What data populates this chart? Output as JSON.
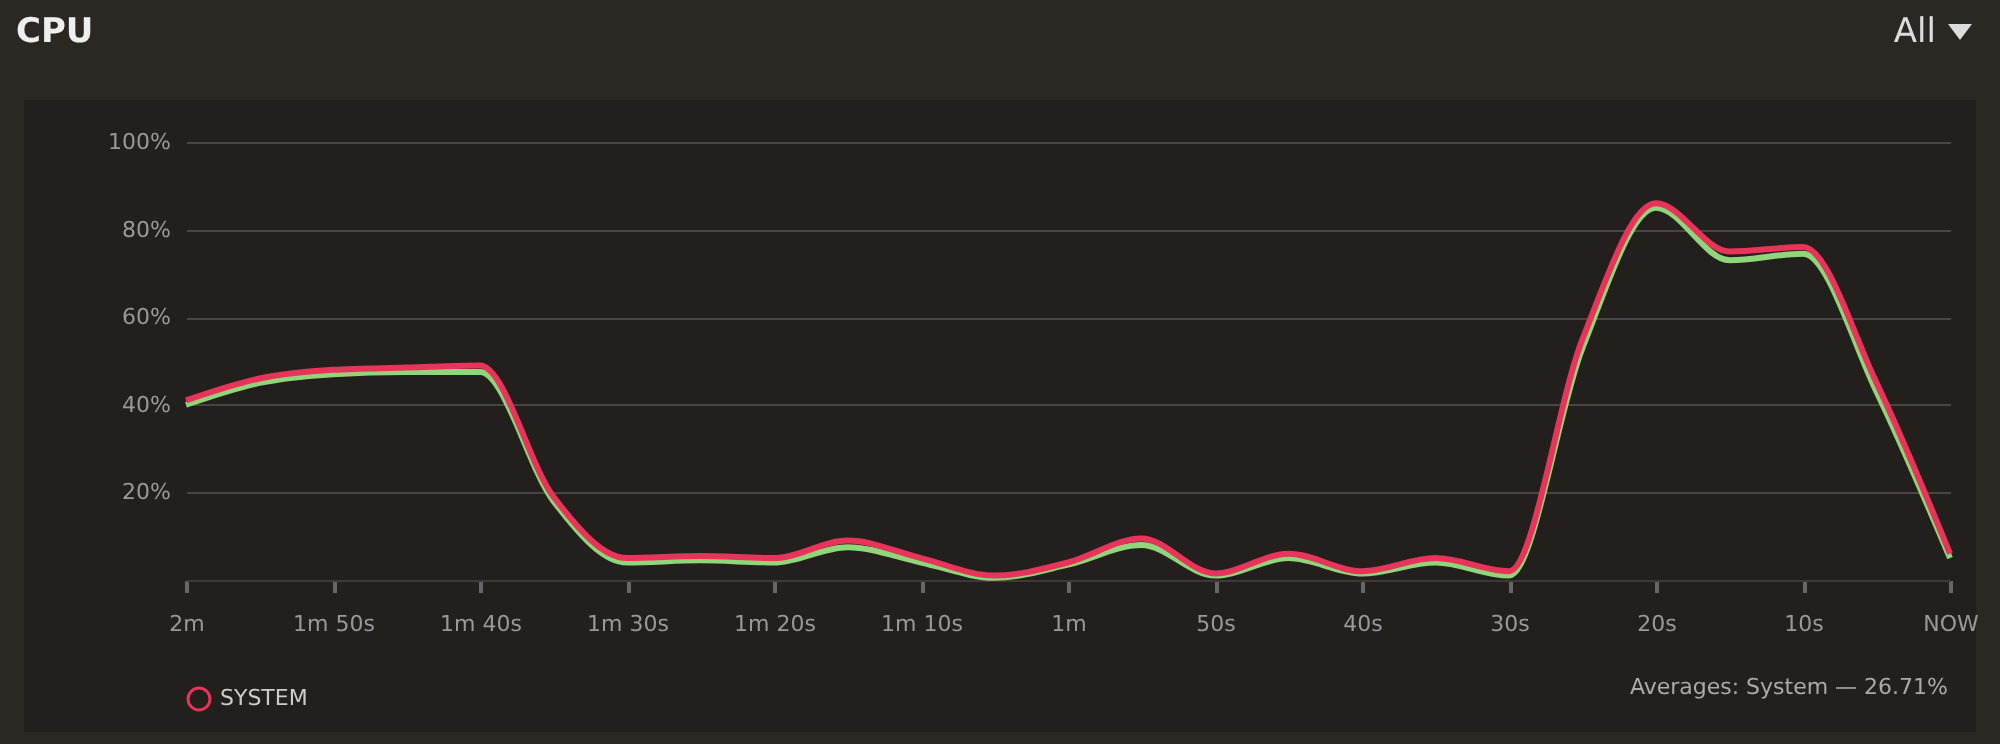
{
  "chart_data": {
    "type": "line",
    "title": "CPU",
    "categories": [
      "2m",
      null,
      "1m 50s",
      null,
      "1m 40s",
      null,
      "1m 30s",
      null,
      "1m 20s",
      null,
      "1m 10s",
      null,
      "1m",
      null,
      "50s",
      null,
      "40s",
      null,
      "30s",
      null,
      "20s",
      null,
      "10s",
      null,
      "NOW"
    ],
    "series": [
      {
        "color": "#8fd67a",
        "values": [
          40,
          45,
          47,
          47.5,
          47.5,
          18,
          4,
          4.5,
          4,
          7.5,
          4,
          0.5,
          3.5,
          8,
          1,
          5,
          1.5,
          4,
          1,
          53,
          85,
          73,
          74.5,
          43,
          5
        ]
      },
      {
        "name": "SYSTEM",
        "color": "#e8345a",
        "values": [
          41,
          46,
          48,
          48.5,
          49,
          19,
          5,
          5.5,
          5,
          9,
          5,
          1,
          4,
          9.5,
          1.5,
          6,
          2,
          5,
          2,
          55,
          86,
          75,
          76,
          45,
          6
        ]
      }
    ],
    "ylim": [
      0,
      100
    ],
    "yticks": [
      {
        "value": 20,
        "label": "20%"
      },
      {
        "value": 40,
        "label": "40%"
      },
      {
        "value": 60,
        "label": "60%"
      },
      {
        "value": 80,
        "label": "80%"
      },
      {
        "value": 100,
        "label": "100%"
      }
    ],
    "grid": "y",
    "legend": "bottom left",
    "marker": "none",
    "line_style": "solid",
    "annotations": [
      "Averages: System — 26.71%",
      "All"
    ]
  }
}
